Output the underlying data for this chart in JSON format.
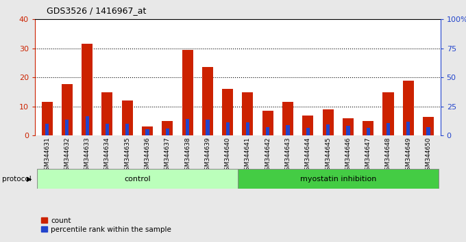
{
  "title": "GDS3526 / 1416967_at",
  "samples": [
    "GSM344631",
    "GSM344632",
    "GSM344633",
    "GSM344634",
    "GSM344635",
    "GSM344636",
    "GSM344637",
    "GSM344638",
    "GSM344639",
    "GSM344640",
    "GSM344641",
    "GSM344642",
    "GSM344643",
    "GSM344644",
    "GSM344645",
    "GSM344646",
    "GSM344647",
    "GSM344648",
    "GSM344649",
    "GSM344650"
  ],
  "counts": [
    11.5,
    17.8,
    31.5,
    14.8,
    12.0,
    3.0,
    5.0,
    29.5,
    23.5,
    16.0,
    15.0,
    8.5,
    11.5,
    7.0,
    9.0,
    6.0,
    5.0,
    14.8,
    19.0,
    6.5
  ],
  "percentile_ranks": [
    10.0,
    13.5,
    16.5,
    10.0,
    10.0,
    5.5,
    6.0,
    14.5,
    13.5,
    11.5,
    11.5,
    7.0,
    9.0,
    6.5,
    9.5,
    8.5,
    6.5,
    10.5,
    12.0,
    7.0
  ],
  "bar_color": "#cc2200",
  "percentile_color": "#2244cc",
  "control_indices": [
    0,
    9
  ],
  "myostatin_indices": [
    10,
    19
  ],
  "control_color": "#bbffbb",
  "myostatin_color": "#44cc44",
  "ylim_left": [
    0,
    40
  ],
  "yticks_left": [
    0,
    10,
    20,
    30,
    40
  ],
  "yticks_right_labels": [
    "0",
    "25",
    "50",
    "75",
    "100%"
  ],
  "yticks_right_vals": [
    0,
    25,
    50,
    75,
    100
  ],
  "ylabel_left_color": "#cc2200",
  "ylabel_right_color": "#2244cc",
  "bg_color": "#e8e8e8",
  "plot_bg_color": "#ffffff",
  "ticklabel_bg_color": "#cccccc",
  "legend_count_label": "count",
  "legend_pct_label": "percentile rank within the sample",
  "protocol_label": "protocol",
  "control_label": "control",
  "myostatin_label": "myostatin inhibition",
  "red_bar_width": 0.55,
  "blue_bar_width": 0.18
}
